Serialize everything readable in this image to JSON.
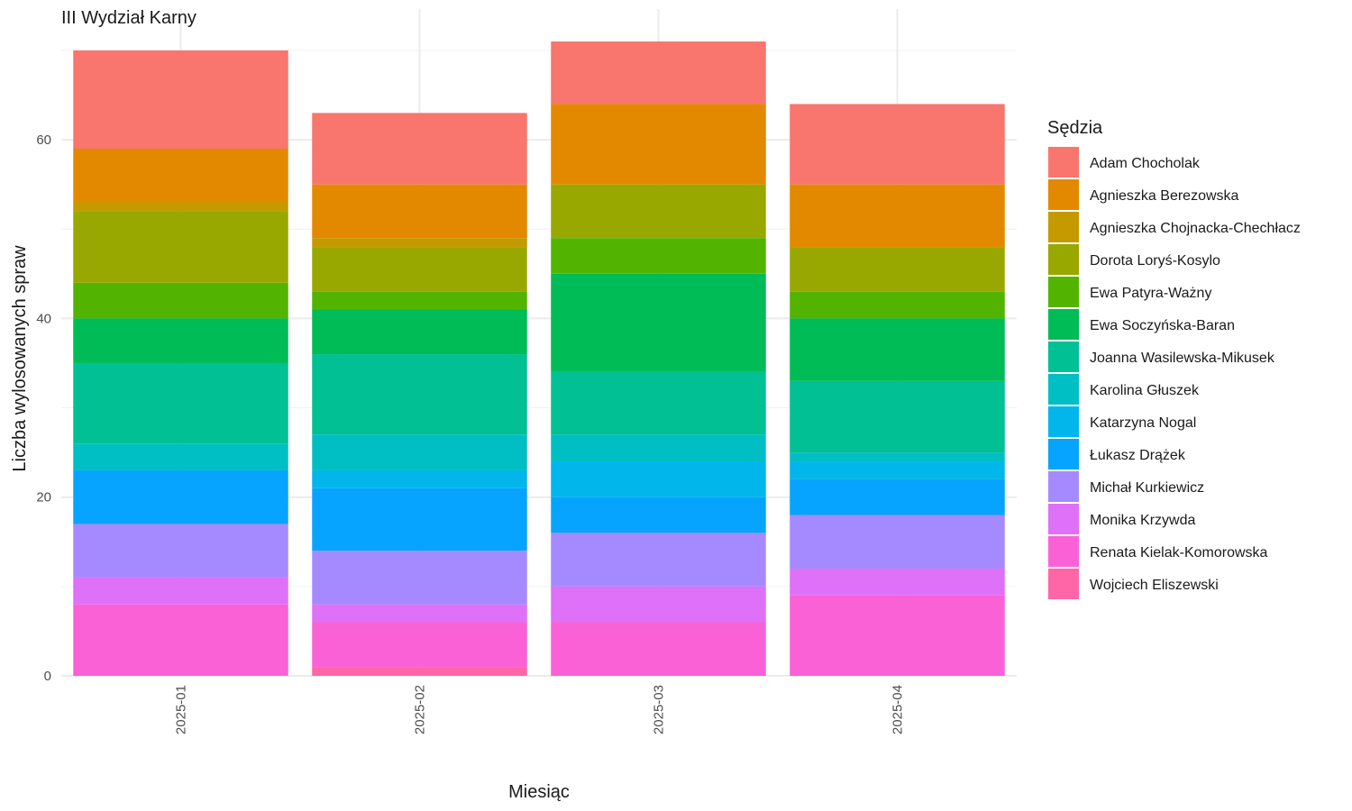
{
  "chart_data": {
    "type": "bar",
    "stacked": true,
    "title": "III Wydział Karny",
    "xlabel": "Miesiąc",
    "ylabel": "Liczba wylosowanych spraw",
    "ylim": [
      0,
      72
    ],
    "yticks": [
      0,
      20,
      40,
      60
    ],
    "grid": true,
    "categories": [
      "2025-01",
      "2025-02",
      "2025-03",
      "2025-04"
    ],
    "legend": {
      "title": "Sędzia",
      "placement": "right"
    },
    "series": [
      {
        "name": "Adam Chocholak",
        "color": "#F8766D",
        "values": [
          11,
          8,
          7,
          9
        ]
      },
      {
        "name": "Agnieszka Berezowska",
        "color": "#E38900",
        "values": [
          6,
          6,
          9,
          7
        ]
      },
      {
        "name": "Agnieszka Chojnacka-Chechłacz",
        "color": "#C49A00",
        "values": [
          1,
          1,
          0,
          0
        ]
      },
      {
        "name": "Dorota Loryś-Kosylo",
        "color": "#99A800",
        "values": [
          8,
          5,
          6,
          5
        ]
      },
      {
        "name": "Ewa Patyra-Ważny",
        "color": "#53B400",
        "values": [
          4,
          2,
          4,
          3
        ]
      },
      {
        "name": "Ewa Soczyńska-Baran",
        "color": "#00BC56",
        "values": [
          5,
          5,
          11,
          7
        ]
      },
      {
        "name": "Joanna Wasilewska-Mikusek",
        "color": "#00C094",
        "values": [
          9,
          9,
          7,
          8
        ]
      },
      {
        "name": "Karolina Głuszek",
        "color": "#00BFC4",
        "values": [
          3,
          4,
          3,
          1
        ]
      },
      {
        "name": "Katarzyna Nogal",
        "color": "#00B6EB",
        "values": [
          0,
          2,
          4,
          2
        ]
      },
      {
        "name": "Łukasz Drążek",
        "color": "#06A4FF",
        "values": [
          6,
          7,
          4,
          4
        ]
      },
      {
        "name": "Michał Kurkiewicz",
        "color": "#A58AFF",
        "values": [
          6,
          6,
          6,
          6
        ]
      },
      {
        "name": "Monika Krzywda",
        "color": "#DF70F8",
        "values": [
          3,
          2,
          4,
          3
        ]
      },
      {
        "name": "Renata Kielak-Komorowska",
        "color": "#FB61D7",
        "values": [
          8,
          5,
          6,
          9
        ]
      },
      {
        "name": "Wojciech Eliszewski",
        "color": "#FF66A8",
        "values": [
          0,
          1,
          0,
          0
        ]
      }
    ]
  }
}
